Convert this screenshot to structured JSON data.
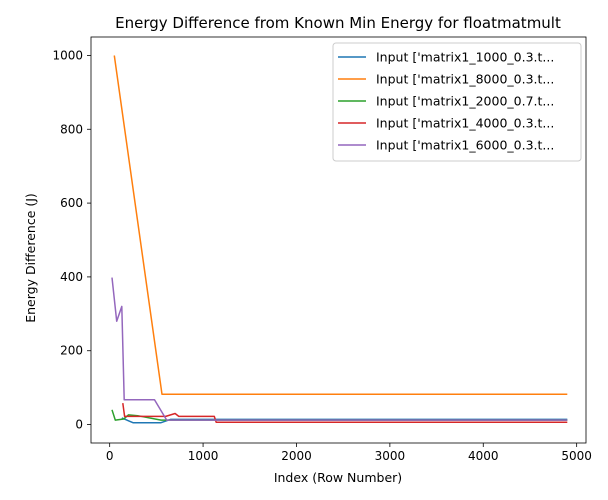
{
  "chart_data": {
    "type": "line",
    "title": "Energy Difference from Known Min Energy for floatmatmult",
    "xlabel": "Index (Row Number)",
    "ylabel": "Energy Difference (J)",
    "xlim": [
      -200,
      5100
    ],
    "ylim": [
      -50,
      1050
    ],
    "xticks": [
      0,
      1000,
      2000,
      3000,
      4000,
      5000
    ],
    "yticks": [
      0,
      200,
      400,
      600,
      800,
      1000
    ],
    "grid": false,
    "legend_position": "top-right",
    "series": [
      {
        "name": "Input ['matrix1_1000_0.3.t...",
        "color": "#1f77b4",
        "points": [
          [
            130,
            18
          ],
          [
            250,
            5
          ],
          [
            550,
            5
          ],
          [
            650,
            14
          ],
          [
            4900,
            14
          ]
        ]
      },
      {
        "name": "Input ['matrix1_8000_0.3.t...",
        "color": "#ff7f0e",
        "points": [
          [
            50,
            1000
          ],
          [
            560,
            82
          ],
          [
            4900,
            82
          ]
        ]
      },
      {
        "name": "Input ['matrix1_2000_0.7.t...",
        "color": "#2ca02c",
        "points": [
          [
            25,
            40
          ],
          [
            60,
            12
          ],
          [
            150,
            15
          ],
          [
            200,
            26
          ],
          [
            300,
            24
          ],
          [
            550,
            12
          ],
          [
            4900,
            12
          ]
        ]
      },
      {
        "name": "Input ['matrix1_4000_0.3.t...",
        "color": "#d62728",
        "points": [
          [
            140,
            58
          ],
          [
            160,
            22
          ],
          [
            600,
            22
          ],
          [
            700,
            30
          ],
          [
            740,
            22
          ],
          [
            1120,
            22
          ],
          [
            1140,
            6
          ],
          [
            4900,
            6
          ]
        ]
      },
      {
        "name": "Input ['matrix1_6000_0.3.t...",
        "color": "#9467bd",
        "points": [
          [
            25,
            398
          ],
          [
            75,
            280
          ],
          [
            130,
            320
          ],
          [
            155,
            67
          ],
          [
            480,
            67
          ],
          [
            610,
            12
          ],
          [
            4900,
            12
          ]
        ]
      }
    ]
  }
}
